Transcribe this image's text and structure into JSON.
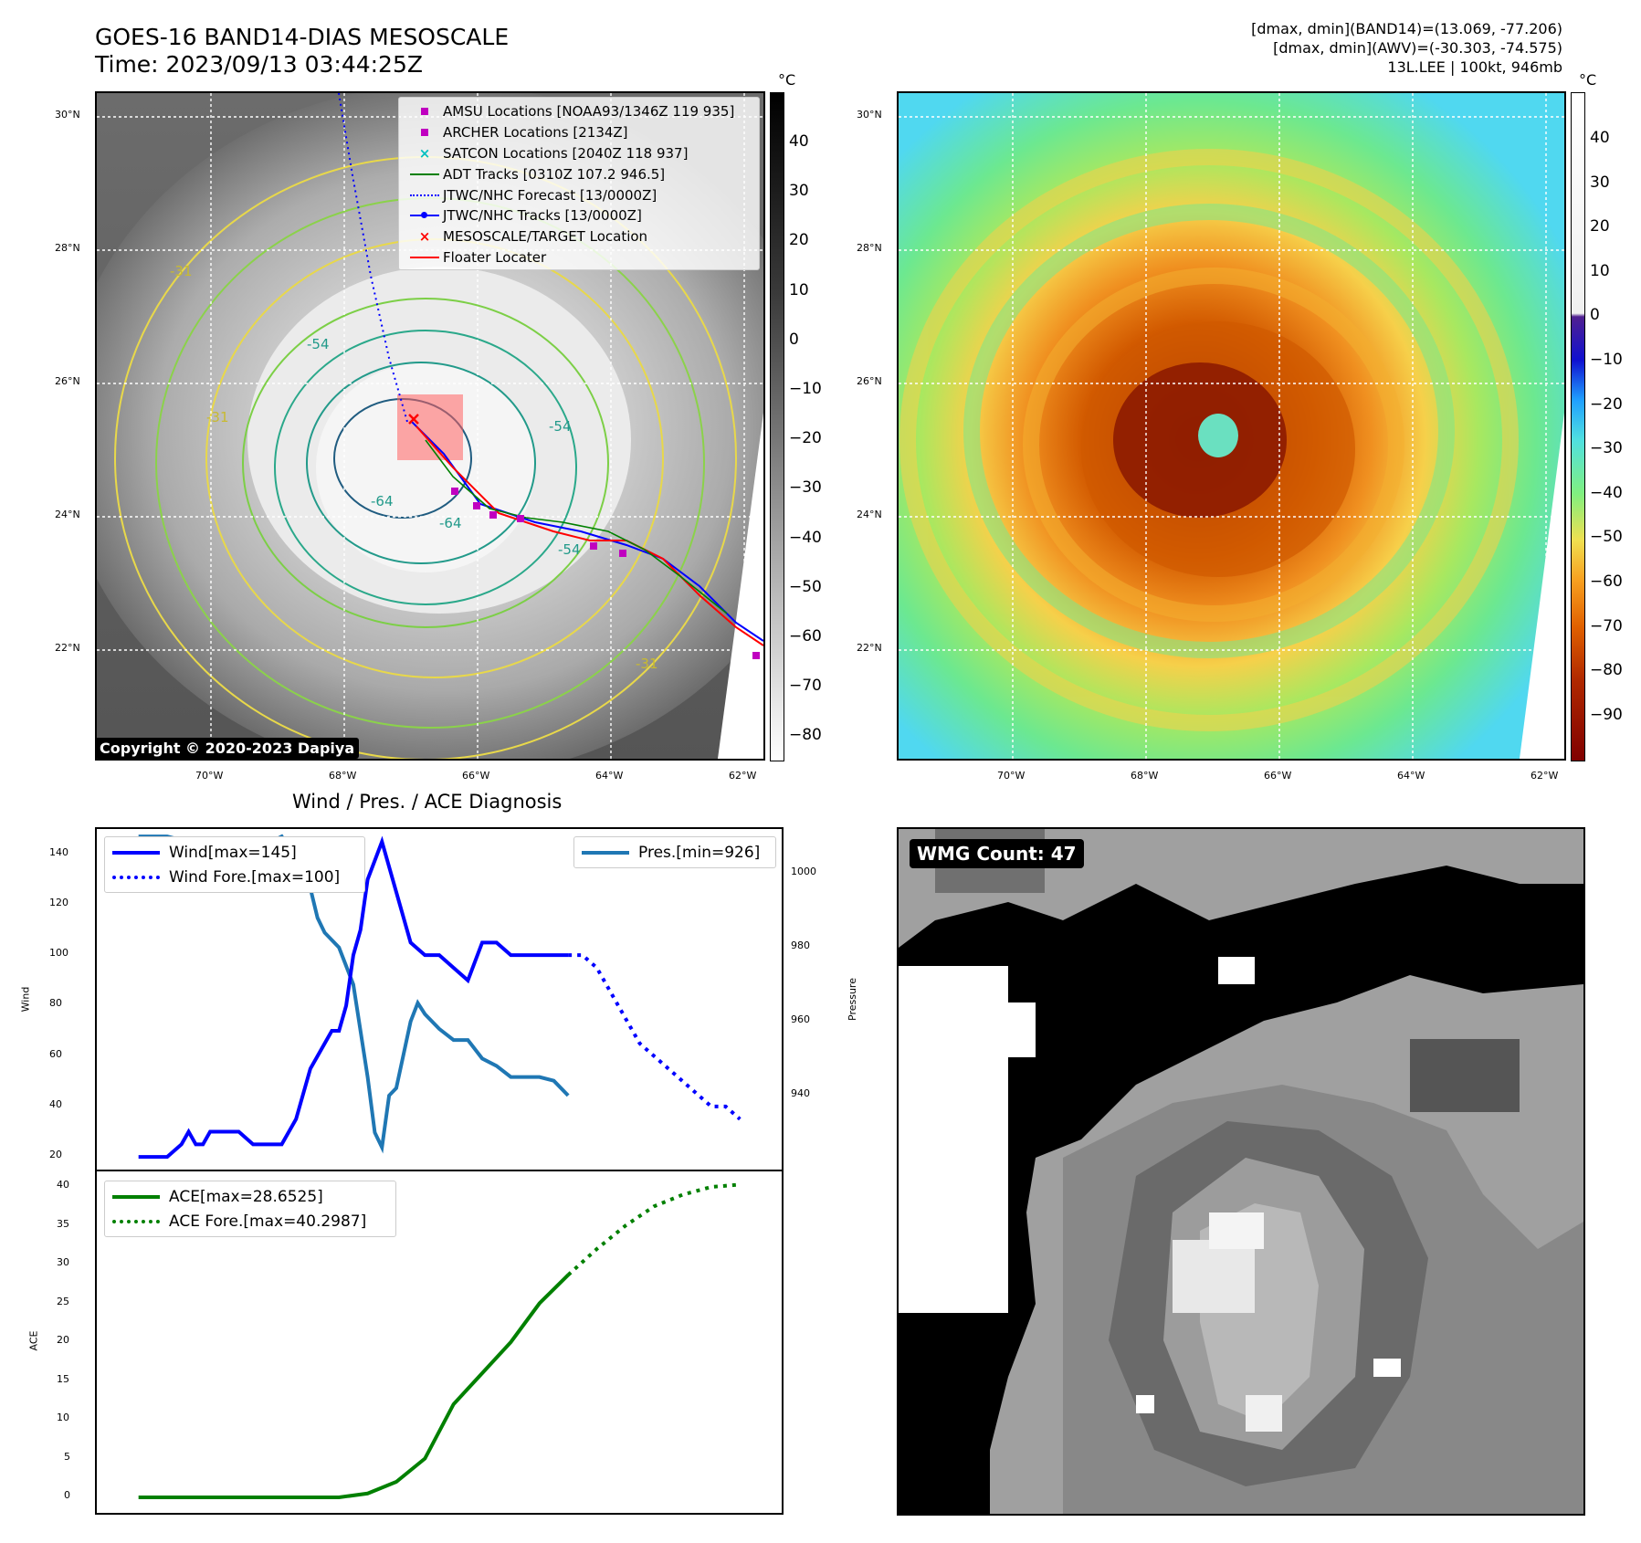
{
  "header": {
    "title_line1": "GOES-16 BAND14-DIAS MESOSCALE",
    "title_line2": "Time: 2023/09/13 03:44:25Z",
    "info_line1": "[dmax, dmin](BAND14)=(13.069, -77.206)",
    "info_line2": "[dmax, dmin](AWV)=(-30.303, -74.575)",
    "info_line3": "13L.LEE | 100kt, 946mb"
  },
  "map": {
    "lat_labels": [
      "30°N",
      "28°N",
      "26°N",
      "24°N",
      "22°N"
    ],
    "lon_labels": [
      "70°W",
      "68°W",
      "66°W",
      "64°W",
      "62°W"
    ],
    "contour_labels": [
      "-31",
      "-31",
      "-31",
      "-54",
      "-54",
      "-54",
      "-64",
      "-64"
    ],
    "copyright": "Copyright © 2020-2023 Dapiya",
    "legend": [
      {
        "label": "AMSU Locations [NOAA93/1346Z 119 935]",
        "color": "#c000c0",
        "marker": "square"
      },
      {
        "label": "ARCHER Locations [2134Z]",
        "color": "#c000c0",
        "marker": "square"
      },
      {
        "label": "SATCON Locations [2040Z 118 937]",
        "color": "#00c0c0",
        "marker": "x"
      },
      {
        "label": "ADT Tracks [0310Z 107.2 946.5]",
        "color": "#008000",
        "marker": "line"
      },
      {
        "label": "JTWC/NHC Forecast [13/0000Z]",
        "color": "#0000ff",
        "marker": "dotted"
      },
      {
        "label": "JTWC/NHC Tracks [13/0000Z]",
        "color": "#0000ff",
        "marker": "line-dot"
      },
      {
        "label": "MESOSCALE/TARGET Location",
        "color": "#ff0000",
        "marker": "x"
      },
      {
        "label": "Floater Locater",
        "color": "#ff0000",
        "marker": "line"
      }
    ]
  },
  "colorbar_gray": {
    "unit": "°C",
    "ticks": [
      "40",
      "30",
      "20",
      "10",
      "0",
      "−10",
      "−20",
      "−30",
      "−40",
      "−50",
      "−60",
      "−70",
      "−80"
    ]
  },
  "colorbar_color": {
    "unit": "°C",
    "ticks": [
      "40",
      "30",
      "20",
      "10",
      "0",
      "−10",
      "−20",
      "−30",
      "−40",
      "−50",
      "−60",
      "−70",
      "−80",
      "−90"
    ]
  },
  "wmg": {
    "label": "WMG Count: 47"
  },
  "plots": {
    "title": "Wind / Pres. / ACE Diagnosis",
    "wind_ylabel": "Wind",
    "pres_ylabel": "Pressure",
    "ace_ylabel": "ACE",
    "wind_ticks": [
      "140",
      "120",
      "100",
      "80",
      "60",
      "40",
      "20"
    ],
    "pres_ticks": [
      "1000",
      "980",
      "960",
      "940"
    ],
    "ace_ticks": [
      "40",
      "35",
      "30",
      "25",
      "20",
      "15",
      "10",
      "5",
      "0"
    ],
    "legend_wind": "Wind[max=145]",
    "legend_wind_fore": "Wind Fore.[max=100]",
    "legend_pres": "Pres.[min=926]",
    "legend_ace": "ACE[max=28.6525]",
    "legend_ace_fore": "ACE Fore.[max=40.2987]"
  },
  "chart_data": [
    {
      "type": "line",
      "title": "Wind / Pres. / ACE Diagnosis",
      "ylabel": "Wind",
      "ylim": [
        15,
        150
      ],
      "series": [
        {
          "name": "Wind[max=145]",
          "color": "#0000ff",
          "style": "solid",
          "x": [
            0,
            1,
            2,
            3,
            3.5,
            4,
            4.5,
            5,
            6,
            7,
            8,
            9,
            10,
            11,
            12,
            13,
            13.5,
            14,
            14.5,
            15,
            15.5,
            16,
            17,
            18,
            19,
            20,
            20.5,
            21,
            22,
            23,
            24,
            25,
            26,
            27,
            28,
            29,
            30
          ],
          "values": [
            20,
            20,
            20,
            25,
            30,
            25,
            25,
            30,
            30,
            30,
            25,
            25,
            25,
            35,
            55,
            65,
            70,
            70,
            80,
            100,
            110,
            130,
            145,
            125,
            105,
            100,
            100,
            100,
            95,
            90,
            105,
            105,
            100,
            100,
            100,
            100,
            100
          ]
        },
        {
          "name": "Wind Fore.[max=100]",
          "color": "#0000ff",
          "style": "dotted",
          "x": [
            30,
            31,
            32,
            33,
            34,
            35,
            36,
            37,
            38,
            39,
            40,
            41,
            42
          ],
          "values": [
            100,
            100,
            95,
            85,
            75,
            65,
            60,
            55,
            50,
            45,
            40,
            40,
            35
          ]
        }
      ]
    },
    {
      "type": "line",
      "ylabel": "Pressure",
      "ylim": [
        920,
        1012
      ],
      "series": [
        {
          "name": "Pres.[min=926]",
          "color": "#1f77b4",
          "style": "solid",
          "x": [
            0,
            2,
            4,
            6,
            8,
            9,
            10,
            11,
            12,
            12.5,
            13,
            14,
            15,
            16,
            16.5,
            17,
            17.5,
            18,
            19,
            19.5,
            20,
            21,
            22,
            23,
            24,
            25,
            26,
            27,
            28,
            29,
            30
          ],
          "values": [
            1010,
            1010,
            1008,
            1008,
            1008,
            1008,
            1010,
            1004,
            996,
            988,
            984,
            980,
            970,
            945,
            930,
            926,
            940,
            942,
            960,
            965,
            962,
            958,
            955,
            955,
            950,
            948,
            945,
            945,
            945,
            944,
            940
          ]
        }
      ]
    },
    {
      "type": "line",
      "ylabel": "ACE",
      "ylim": [
        -2,
        42
      ],
      "series": [
        {
          "name": "ACE[max=28.6525]",
          "color": "#008000",
          "style": "solid",
          "x": [
            0,
            2,
            4,
            6,
            8,
            10,
            12,
            14,
            16,
            18,
            20,
            22,
            24,
            26,
            28,
            30
          ],
          "values": [
            0,
            0,
            0,
            0,
            0,
            0,
            0,
            0,
            0.5,
            2,
            5,
            12,
            16,
            20,
            25,
            28.65
          ]
        },
        {
          "name": "ACE Fore.[max=40.2987]",
          "color": "#008000",
          "style": "dotted",
          "x": [
            30,
            32,
            34,
            36,
            38,
            40,
            42
          ],
          "values": [
            28.65,
            32,
            35,
            37.5,
            39,
            40,
            40.3
          ]
        }
      ]
    }
  ]
}
